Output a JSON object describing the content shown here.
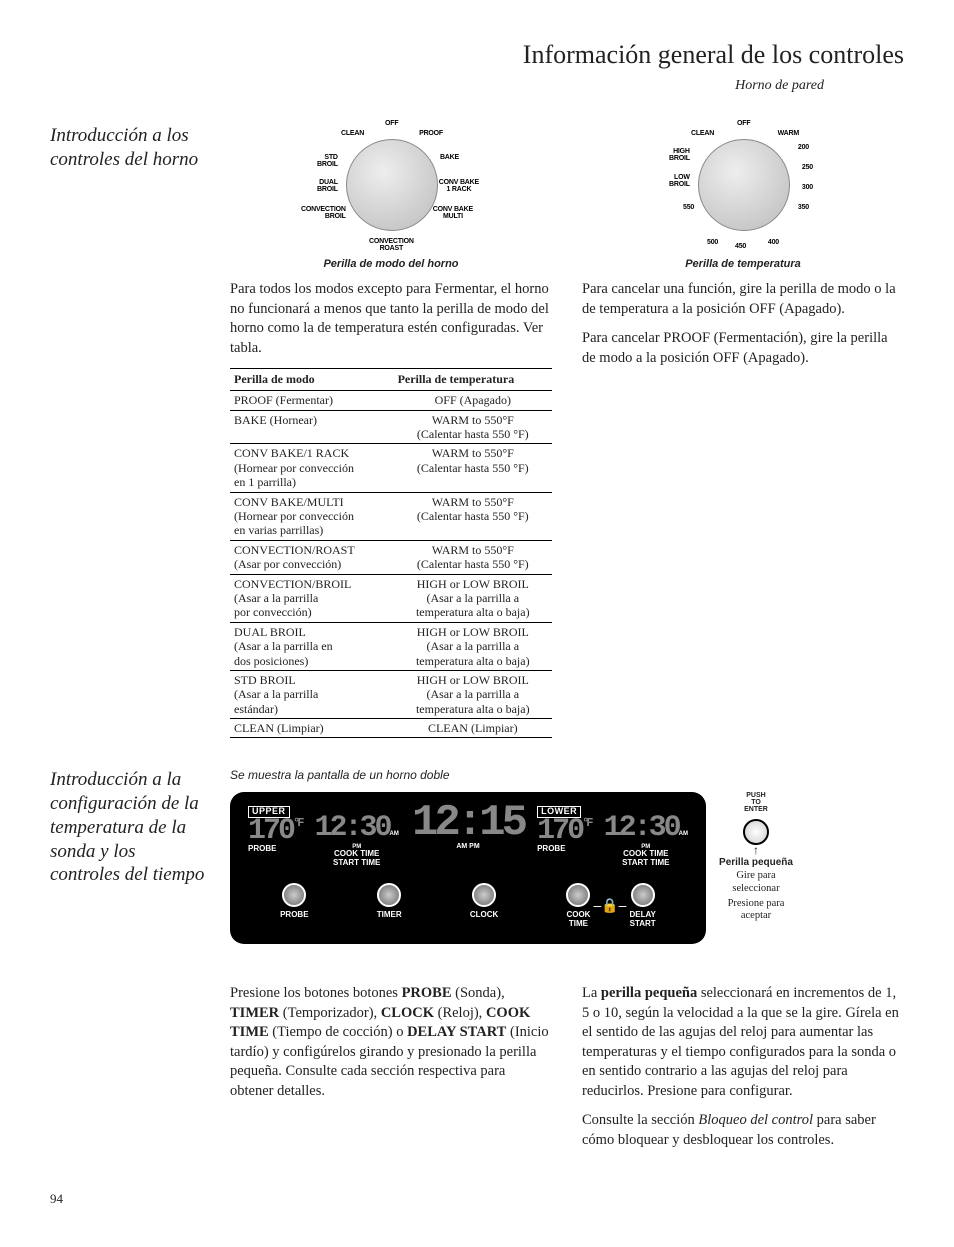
{
  "page_title": "Información general de los controles",
  "subtitle": "Horno de pared",
  "page_number": "94",
  "section1": {
    "heading": "Introducción a los controles del horno",
    "dial_mode": {
      "caption": "Perilla de modo del horno",
      "labels": {
        "off": "OFF",
        "clean": "CLEAN",
        "std_broil": "STD\nBROIL",
        "dual_broil": "DUAL\nBROIL",
        "conv_broil": "CONVECTION\nBROIL",
        "conv_roast": "CONVECTION\nROAST",
        "conv_bake_multi": "CONV BAKE\nMULTI",
        "conv_bake_1": "CONV BAKE\n1 RACK",
        "bake": "BAKE",
        "proof": "PROOF"
      }
    },
    "dial_temp": {
      "caption": "Perilla de temperatura",
      "labels": {
        "off": "OFF",
        "clean": "CLEAN",
        "high_broil": "HIGH\nBROIL",
        "low_broil": "LOW\nBROIL",
        "550": "550",
        "500": "500",
        "450": "450",
        "400": "400",
        "350": "350",
        "300": "300",
        "250": "250",
        "200": "200",
        "warm": "WARM"
      }
    },
    "para_a": "Para todos los modos excepto para Fermentar, el horno no funcionará a menos que tanto la perilla de modo del horno como la de temperatura estén configuradas. Ver tabla.",
    "para_b1": "Para cancelar una función, gire la perilla de modo o la de temperatura a la posición OFF (Apagado).",
    "para_b2": "Para cancelar PROOF (Fermentación), gire la perilla de modo a la posición OFF (Apagado).",
    "table": {
      "headers": [
        "Perilla de modo",
        "Perilla de temperatura"
      ],
      "rows": [
        [
          "PROOF (Fermentar)",
          "OFF (Apagado)"
        ],
        [
          "BAKE (Hornear)",
          "WARM to 550°F\n(Calentar hasta 550 °F)"
        ],
        [
          "CONV BAKE/1 RACK\n(Hornear por convección\nen 1 parrilla)",
          "WARM to 550°F\n(Calentar hasta 550 °F)"
        ],
        [
          "CONV BAKE/MULTI\n(Hornear por convección\nen varias parrillas)",
          "WARM to 550°F\n(Calentar hasta 550 °F)"
        ],
        [
          "CONVECTION/ROAST\n(Asar por convección)",
          "WARM to 550°F\n(Calentar hasta 550 °F)"
        ],
        [
          "CONVECTION/BROIL\n(Asar a la parrilla\npor convección)",
          "HIGH or LOW BROIL\n(Asar a la parrilla a\ntemperatura alta o baja)"
        ],
        [
          "DUAL BROIL\n(Asar a la parrilla en\ndos posiciones)",
          "HIGH or LOW BROIL\n(Asar a la parrilla a\ntemperatura alta o baja)"
        ],
        [
          "STD BROIL\n(Asar a la parrilla\nestándar)",
          "HIGH or LOW BROIL\n(Asar a la parrilla a\ntemperatura alta o baja)"
        ],
        [
          "CLEAN (Limpiar)",
          "CLEAN (Limpiar)"
        ]
      ]
    }
  },
  "section2": {
    "heading": "Introducción a la configuración de la temperatura de la sonda y los controles del tiempo",
    "display_caption": "Se muestra la pantalla de un horno doble",
    "panel": {
      "upper": "UPPER",
      "lower": "LOWER",
      "probe": "PROBE",
      "cook_time": "COOK TIME",
      "start_time": "START TIME",
      "ampm": "AM PM",
      "ampm2": "AM\nPM",
      "temp": "170",
      "degF": "°F",
      "time_sm": "12:30",
      "clock": "12:15",
      "btn_probe": "PROBE",
      "btn_timer": "TIMER",
      "btn_clock": "CLOCK",
      "btn_cook": "COOK\nTIME",
      "btn_delay": "DELAY\nSTART"
    },
    "small_knob": {
      "push": "PUSH\nTO\nENTER",
      "caption": "Perilla pequeña",
      "line1": "Gire para seleccionar",
      "line2": "Presione para aceptar"
    },
    "para_a_html": "Presione los botones botones <b>PROBE</b> (Sonda), <b>TIMER</b> (Temporizador), <b>CLOCK</b> (Reloj), <b>COOK TIME</b> (Tiempo de cocción) o <b>DELAY START</b> (Inicio tardío) y configúrelos girando y presionado la perilla pequeña. Consulte cada sección respectiva para obtener detalles.",
    "para_b1_html": "La <b>perilla pequeña</b> seleccionará en incrementos de 1, 5 o 10, según la velocidad a la que se la gire. Gírela en el sentido de las agujas del reloj para aumentar las temperaturas y el tiempo configurados para la sonda o en sentido contrario a las agujas del reloj para reducirlos. Presione para configurar.",
    "para_b2_html": "Consulte la sección <i>Bloqueo del control</i> para saber cómo bloquear y desbloquear los controles."
  }
}
